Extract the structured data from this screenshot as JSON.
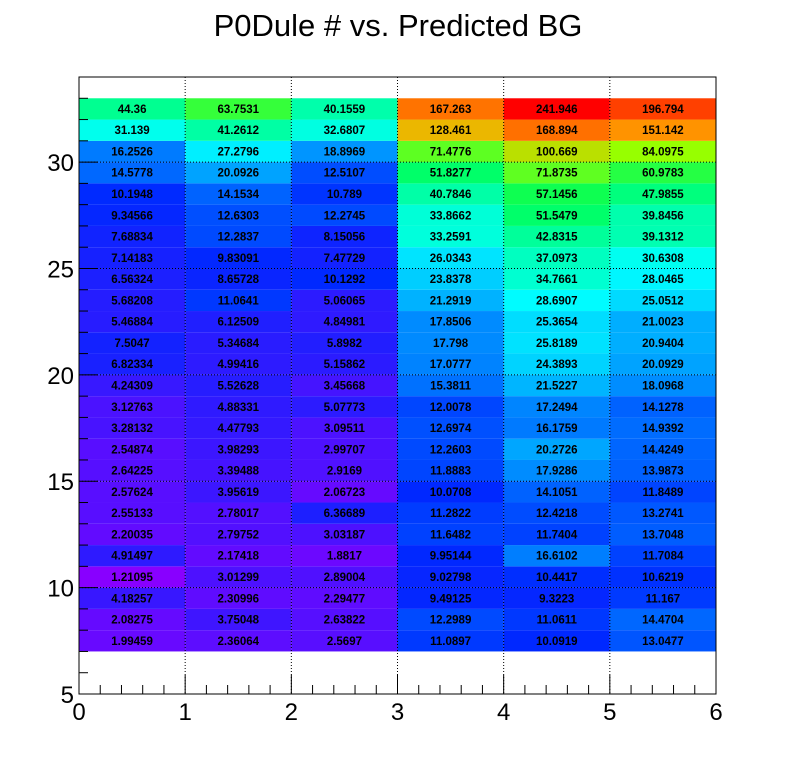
{
  "chart_data": {
    "type": "heatmap",
    "title": "P0Dule # vs. Predicted BG",
    "xlabel": "",
    "ylabel": "",
    "xlim": [
      0,
      6
    ],
    "ylim": [
      5,
      34
    ],
    "x_ticks": [
      0,
      1,
      2,
      3,
      4,
      5,
      6
    ],
    "y_ticks": [
      5,
      10,
      15,
      20,
      25,
      30
    ],
    "y_bin_start": 7,
    "columns": [
      0,
      1,
      2,
      3,
      4,
      5
    ],
    "grid": true,
    "colormap": "rainbow",
    "rows": [
      {
        "y": 7,
        "values": [
          1.99459,
          2.36064,
          2.5697,
          11.0897,
          10.0919,
          13.0477
        ]
      },
      {
        "y": 8,
        "values": [
          2.08275,
          3.75048,
          2.63822,
          12.2989,
          11.0611,
          14.4704
        ]
      },
      {
        "y": 9,
        "values": [
          4.18257,
          2.30996,
          2.29477,
          9.49125,
          9.3223,
          11.167
        ]
      },
      {
        "y": 10,
        "values": [
          1.21095,
          3.01299,
          2.89004,
          9.02798,
          10.4417,
          10.6219
        ]
      },
      {
        "y": 11,
        "values": [
          4.91497,
          2.17418,
          1.8817,
          9.95144,
          16.6102,
          11.7084
        ]
      },
      {
        "y": 12,
        "values": [
          2.20035,
          2.79752,
          3.03187,
          11.6482,
          11.7404,
          13.7048
        ]
      },
      {
        "y": 13,
        "values": [
          2.55133,
          2.78017,
          6.36689,
          11.2822,
          12.4218,
          13.2741
        ]
      },
      {
        "y": 14,
        "values": [
          2.57624,
          3.95619,
          2.06723,
          10.0708,
          14.1051,
          11.8489
        ]
      },
      {
        "y": 15,
        "values": [
          2.64225,
          3.39488,
          2.9169,
          11.8883,
          17.9286,
          13.9873
        ]
      },
      {
        "y": 16,
        "values": [
          2.54874,
          3.98293,
          2.99707,
          12.2603,
          20.2726,
          14.4249
        ]
      },
      {
        "y": 17,
        "values": [
          3.28132,
          4.47793,
          3.09511,
          12.6974,
          16.1759,
          14.9392
        ]
      },
      {
        "y": 18,
        "values": [
          3.12763,
          4.88331,
          5.07773,
          12.0078,
          17.2494,
          14.1278
        ]
      },
      {
        "y": 19,
        "values": [
          4.24309,
          5.52628,
          3.45668,
          15.3811,
          21.5227,
          18.0968
        ]
      },
      {
        "y": 20,
        "values": [
          6.82334,
          4.99416,
          5.15862,
          17.0777,
          24.3893,
          20.0929
        ]
      },
      {
        "y": 21,
        "values": [
          7.5047,
          5.34684,
          5.8982,
          17.798,
          25.8189,
          20.9404
        ]
      },
      {
        "y": 22,
        "values": [
          5.46884,
          6.12509,
          4.84981,
          17.8506,
          25.3654,
          21.0023
        ]
      },
      {
        "y": 23,
        "values": [
          5.68208,
          11.0641,
          5.06065,
          21.2919,
          28.6907,
          25.0512
        ]
      },
      {
        "y": 24,
        "values": [
          6.56324,
          8.65728,
          10.1292,
          23.8378,
          34.7661,
          28.0465
        ]
      },
      {
        "y": 25,
        "values": [
          7.14183,
          9.83091,
          7.47729,
          26.0343,
          37.0973,
          30.6308
        ]
      },
      {
        "y": 26,
        "values": [
          7.68834,
          12.2837,
          8.15056,
          33.2591,
          42.8315,
          39.1312
        ]
      },
      {
        "y": 27,
        "values": [
          9.34566,
          12.6303,
          12.2745,
          33.8662,
          51.5479,
          39.8456
        ]
      },
      {
        "y": 28,
        "values": [
          10.1948,
          14.1534,
          10.789,
          40.7846,
          57.1456,
          47.9855
        ]
      },
      {
        "y": 29,
        "values": [
          14.5778,
          20.0926,
          12.5107,
          51.8277,
          71.8735,
          60.9783
        ]
      },
      {
        "y": 30,
        "values": [
          16.2526,
          27.2796,
          18.8969,
          71.4776,
          100.669,
          84.0975
        ]
      },
      {
        "y": 31,
        "values": [
          31.139,
          41.2612,
          32.6807,
          128.461,
          168.894,
          151.142
        ]
      },
      {
        "y": 32,
        "values": [
          44.36,
          63.7531,
          40.1559,
          167.263,
          241.946,
          196.794
        ]
      }
    ]
  }
}
